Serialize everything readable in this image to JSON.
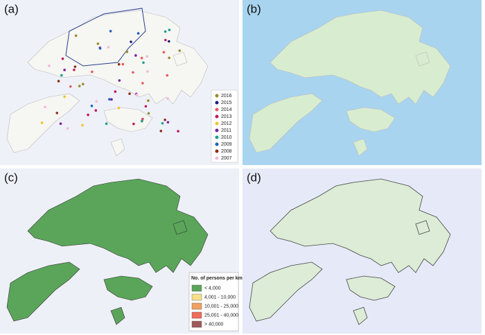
{
  "panels": [
    {
      "label": "(a)",
      "legend": {
        "items": [
          {
            "label": "2016",
            "color": "#9a8a2a"
          },
          {
            "label": "2015",
            "color": "#1a237e"
          },
          {
            "label": "2014",
            "color": "#e65c5c"
          },
          {
            "label": "2013",
            "color": "#c2185b"
          },
          {
            "label": "2012",
            "color": "#f2c12e"
          },
          {
            "label": "2011",
            "color": "#7b1fa2"
          },
          {
            "label": "2010",
            "color": "#1e9e8a"
          },
          {
            "label": "2009",
            "color": "#1f5fbf"
          },
          {
            "label": "2008",
            "color": "#8b2e1a"
          },
          {
            "label": "2007",
            "color": "#f5b8d8"
          }
        ]
      }
    },
    {
      "label": "(b)"
    },
    {
      "label": "(c)",
      "legend": {
        "title": "No. of persons per km²",
        "items": [
          {
            "label": "< 4,000",
            "color": "#5aa55a"
          },
          {
            "label": "4,001 - 10,000",
            "color": "#f7e08a"
          },
          {
            "label": "10,001 - 25,000",
            "color": "#f0a060"
          },
          {
            "label": "25,001 - 40,000",
            "color": "#ef6b5b"
          },
          {
            "label": "> 40,000",
            "color": "#a05a5a"
          }
        ]
      }
    },
    {
      "label": "(d)"
    }
  ]
}
